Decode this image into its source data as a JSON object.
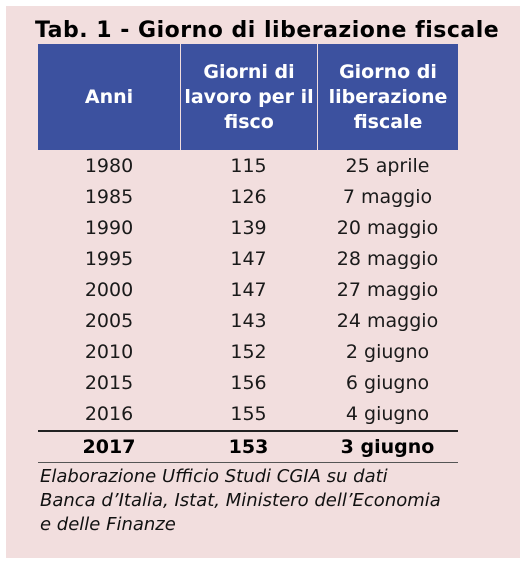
{
  "title": "Tab. 1 - Giorno di liberazione fiscale",
  "headers": [
    "Anni",
    "Giorni di\nlavoro per il\nfisco",
    "Giorno di\nliberazione\nfiscale"
  ],
  "rows": [
    [
      "1980",
      "115",
      "25 aprile"
    ],
    [
      "1985",
      "126",
      "7 maggio"
    ],
    [
      "1990",
      "139",
      "20 maggio"
    ],
    [
      "1995",
      "147",
      "28 maggio"
    ],
    [
      "2000",
      "147",
      "27 maggio"
    ],
    [
      "2005",
      "143",
      "24 maggio"
    ],
    [
      "2010",
      "152",
      "2 giugno"
    ],
    [
      "2015",
      "156",
      "6 giugno"
    ],
    [
      "2016",
      "155",
      "4 giugno"
    ]
  ],
  "total_row": [
    "2017",
    "153",
    "3 giugno"
  ],
  "source": "Elaborazione Ufficio Studi CGIA su dati\nBanca d’Italia, Istat, Ministero dell’Economia\ne delle Finanze",
  "colors": {
    "header_bg": "#3c519f",
    "panel_bg": "#f2dede",
    "header_text": "#ffffff"
  }
}
